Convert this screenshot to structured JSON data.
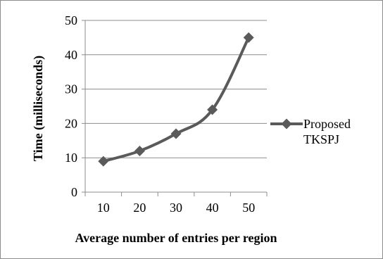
{
  "chart_data": {
    "type": "line",
    "title": "",
    "xlabel": "Average number of entries per region",
    "ylabel": "Time (milliseconds)",
    "categories": [
      "10",
      "20",
      "30",
      "40",
      "50"
    ],
    "ylim": [
      0,
      50
    ],
    "yticks": [
      "0",
      "10",
      "20",
      "30",
      "40",
      "50"
    ],
    "grid": "horizontal",
    "legend_position": "right",
    "series": [
      {
        "name": "Proposed TKSPJ",
        "legend_lines": [
          "Proposed",
          "TKSPJ"
        ],
        "values": [
          9,
          12,
          17,
          24,
          45
        ],
        "color": "#5a5a5a",
        "marker": "diamond"
      }
    ]
  }
}
